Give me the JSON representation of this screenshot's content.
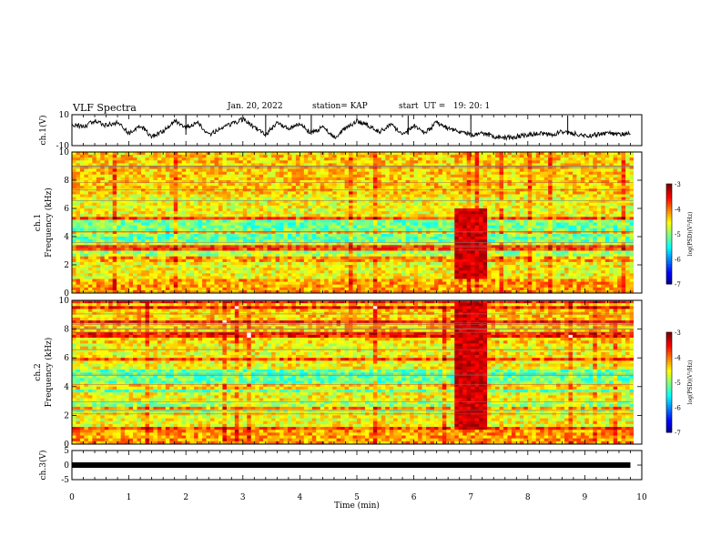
{
  "header": {
    "title": "VLF Spectra",
    "date": "Jan. 20, 2022",
    "station": "station= KAP",
    "start_ut": "start  UT =   19: 20: 1"
  },
  "chart_data": [
    {
      "type": "line",
      "name": "ch1-waveform",
      "ylabel": "ch.1(V)",
      "ylim": [
        -10,
        10
      ],
      "yticks": [
        "10",
        "-10"
      ],
      "xlim": [
        0,
        10
      ],
      "grid": false,
      "series": [
        {
          "x": [
            0,
            0.2,
            0.4,
            0.6,
            0.8,
            1.0,
            1.2,
            1.4,
            1.6,
            1.8,
            2.0,
            2.2,
            2.4,
            2.6,
            2.8,
            3.0,
            3.2,
            3.4,
            3.6,
            3.8,
            4.0,
            4.2,
            4.4,
            4.6,
            4.8,
            5.0,
            5.2,
            5.4,
            5.6,
            5.8,
            6.0,
            6.2,
            6.4,
            6.6,
            6.8,
            7.0,
            7.2,
            7.4,
            7.6,
            7.8,
            8.0,
            8.2,
            8.4,
            8.6,
            8.8,
            9.0,
            9.2,
            9.4,
            9.6,
            9.8
          ],
          "y": [
            4,
            2,
            6,
            3,
            5,
            -2,
            3,
            -4,
            -1,
            6,
            2,
            5,
            -3,
            1,
            4,
            7,
            2,
            -3,
            5,
            1,
            4,
            -2,
            2,
            -5,
            1,
            6,
            3,
            -1,
            4,
            -3,
            3,
            -2,
            5,
            1,
            -1,
            -3,
            -2,
            -4,
            -5,
            -4,
            -3,
            -2,
            -3,
            -1,
            -2,
            -4,
            -3,
            -2,
            -3,
            -2
          ]
        }
      ]
    },
    {
      "type": "heatmap",
      "name": "ch1-spectrogram",
      "ylabel": "ch.1\nFrequency (kHz)",
      "ylim": [
        0,
        10
      ],
      "yticks": [
        0,
        2,
        4,
        6,
        8,
        10
      ],
      "xlim": [
        0,
        10
      ],
      "colorbar": {
        "label": "log(PSD)(V²/Hz)",
        "range": [
          -7,
          -3
        ],
        "ticks": [
          "-3",
          "-4",
          "-5",
          "-6",
          "-7"
        ]
      },
      "burst": {
        "t_start": 6.7,
        "t_end": 7.3,
        "f_min": 1.0,
        "f_max": 6.0
      }
    },
    {
      "type": "heatmap",
      "name": "ch2-spectrogram",
      "ylabel": "ch.2\nFrequency (kHz)",
      "ylim": [
        0,
        10
      ],
      "yticks": [
        0,
        2,
        4,
        6,
        8,
        10
      ],
      "xlim": [
        0,
        10
      ],
      "colorbar": {
        "label": "log(PSD)(V²/Hz)",
        "range": [
          -7,
          -3
        ],
        "ticks": [
          "-3",
          "-4",
          "-5",
          "-6",
          "-7"
        ]
      },
      "burst": {
        "t_start": 6.7,
        "t_end": 7.3,
        "f_min": 1.0,
        "f_max": 10.0
      }
    },
    {
      "type": "line",
      "name": "ch3-waveform",
      "ylabel": "ch.3(V)",
      "ylim": [
        -5,
        5
      ],
      "yticks": [
        "5",
        "0",
        "-5"
      ],
      "xlim": [
        0,
        9.8
      ],
      "xlabel": "Time (min)",
      "xticks": [
        "0",
        "1",
        "2",
        "3",
        "4",
        "5",
        "6",
        "7",
        "8",
        "9",
        "10"
      ],
      "series": [
        {
          "x": [
            0,
            9.8
          ],
          "y": [
            0,
            0
          ]
        }
      ]
    }
  ]
}
